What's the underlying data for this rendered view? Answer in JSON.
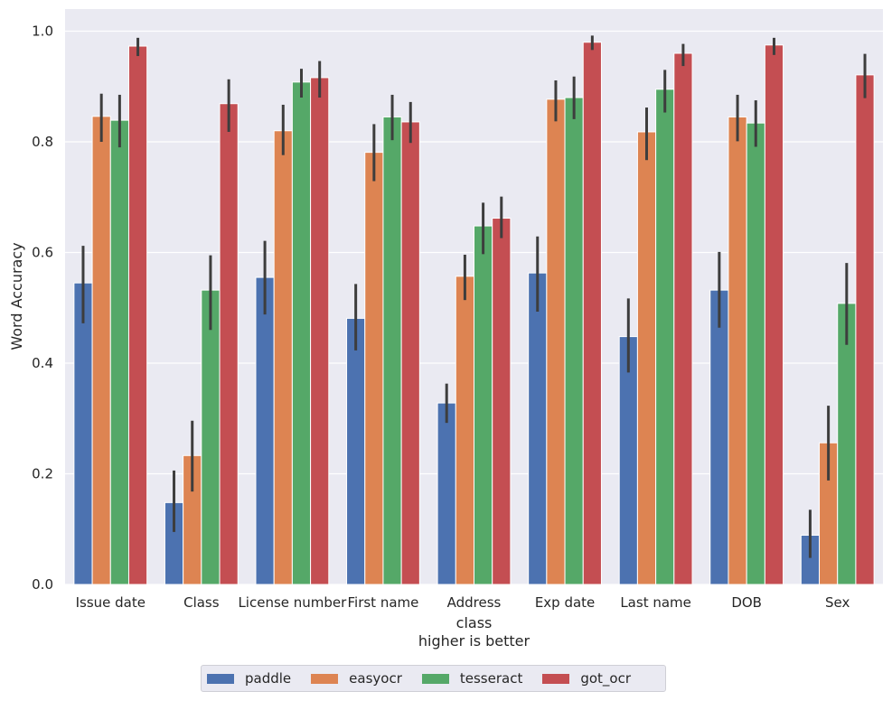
{
  "chart_data": {
    "type": "bar",
    "title": "",
    "xlabel": "class",
    "xlabel_sub": "higher is better",
    "ylabel": "Word Accuracy",
    "ylim": [
      0,
      1.04
    ],
    "yticks": [
      "0.0",
      "0.2",
      "0.4",
      "0.6",
      "0.8",
      "1.0"
    ],
    "grid": true,
    "legend_position": "bottom-center",
    "categories": [
      "Issue date",
      "Class",
      "License number",
      "First name",
      "Address",
      "Exp date",
      "Last name",
      "DOB",
      "Sex"
    ],
    "series": [
      {
        "name": "paddle",
        "color": "#4c72b0",
        "values": [
          0.545,
          0.148,
          0.555,
          0.481,
          0.328,
          0.563,
          0.448,
          0.532,
          0.089
        ],
        "ci_low": [
          0.472,
          0.095,
          0.488,
          0.423,
          0.292,
          0.493,
          0.383,
          0.464,
          0.048
        ],
        "ci_high": [
          0.612,
          0.206,
          0.621,
          0.543,
          0.363,
          0.629,
          0.517,
          0.601,
          0.135
        ]
      },
      {
        "name": "easyocr",
        "color": "#dd8452",
        "values": [
          0.846,
          0.233,
          0.82,
          0.781,
          0.557,
          0.877,
          0.818,
          0.845,
          0.256
        ],
        "ci_low": [
          0.8,
          0.168,
          0.776,
          0.729,
          0.514,
          0.837,
          0.767,
          0.801,
          0.188
        ],
        "ci_high": [
          0.887,
          0.296,
          0.867,
          0.832,
          0.596,
          0.911,
          0.862,
          0.885,
          0.323
        ]
      },
      {
        "name": "tesseract",
        "color": "#55a868",
        "values": [
          0.839,
          0.532,
          0.908,
          0.845,
          0.648,
          0.88,
          0.895,
          0.834,
          0.508
        ],
        "ci_low": [
          0.79,
          0.46,
          0.88,
          0.803,
          0.597,
          0.841,
          0.853,
          0.791,
          0.433
        ],
        "ci_high": [
          0.885,
          0.595,
          0.932,
          0.885,
          0.69,
          0.918,
          0.93,
          0.875,
          0.581
        ]
      },
      {
        "name": "got_ocr",
        "color": "#c44e52",
        "values": [
          0.973,
          0.869,
          0.916,
          0.836,
          0.662,
          0.98,
          0.96,
          0.975,
          0.921
        ],
        "ci_low": [
          0.955,
          0.818,
          0.88,
          0.798,
          0.626,
          0.966,
          0.937,
          0.957,
          0.879
        ],
        "ci_high": [
          0.988,
          0.913,
          0.946,
          0.872,
          0.701,
          0.992,
          0.977,
          0.988,
          0.959
        ]
      }
    ]
  }
}
